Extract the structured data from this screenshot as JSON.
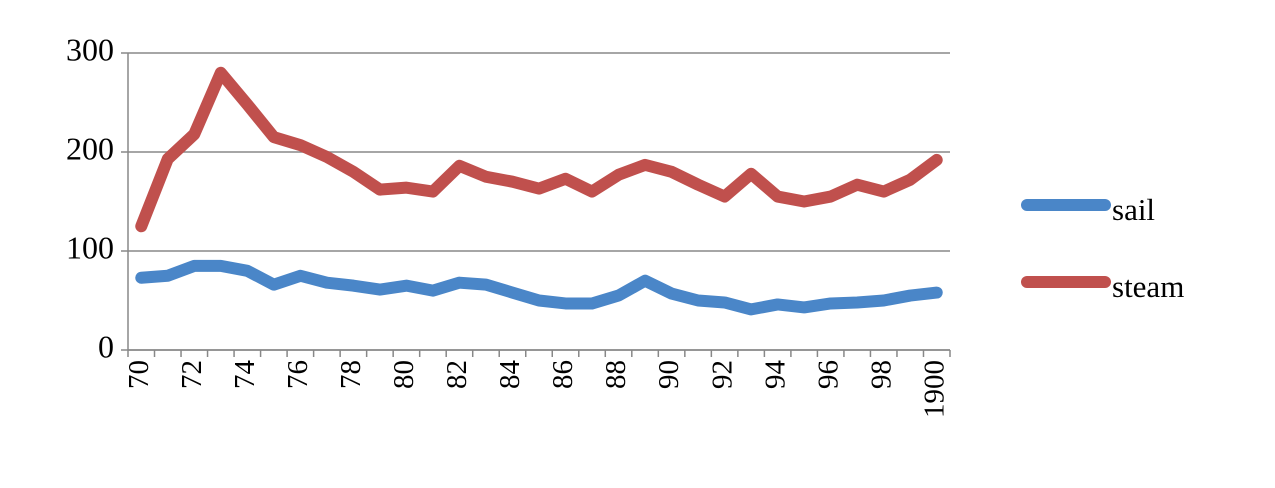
{
  "chart_data": {
    "type": "line",
    "categories": [
      "70",
      null,
      "72",
      null,
      "74",
      null,
      "76",
      null,
      "78",
      null,
      "80",
      null,
      "82",
      null,
      "84",
      null,
      "86",
      null,
      "88",
      null,
      "90",
      null,
      "92",
      null,
      "94",
      null,
      "96",
      null,
      "98",
      null,
      "1900"
    ],
    "series": [
      {
        "name": "sail",
        "color": "#4a86c8",
        "values": [
          73,
          75,
          85,
          85,
          80,
          66,
          75,
          68,
          65,
          61,
          65,
          60,
          68,
          66,
          58,
          50,
          47,
          47,
          55,
          70,
          57,
          50,
          48,
          41,
          46,
          43,
          47,
          48,
          50,
          55,
          58
        ]
      },
      {
        "name": "steam",
        "color": "#c0504d",
        "values": [
          125,
          193,
          218,
          280,
          248,
          215,
          207,
          195,
          180,
          162,
          164,
          160,
          186,
          175,
          170,
          163,
          173,
          160,
          177,
          187,
          180,
          167,
          155,
          178,
          155,
          150,
          155,
          167,
          160,
          172,
          192
        ]
      }
    ],
    "ylim": [
      0,
      300
    ],
    "yticks": [
      0,
      100,
      200,
      300
    ],
    "grid": true,
    "legend": "right"
  }
}
